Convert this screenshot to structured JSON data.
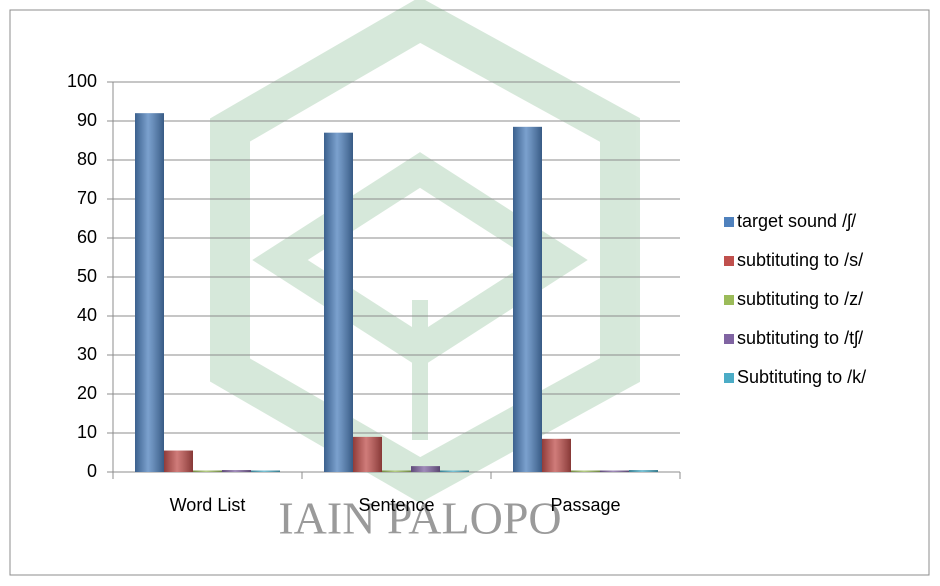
{
  "chart_data": {
    "type": "bar",
    "watermark": "IAIN PALOPO",
    "categories": [
      "Word List",
      "Sentence",
      "Passage"
    ],
    "series": [
      {
        "name": "target sound /ʃ/",
        "color": "#4f81bd",
        "values": [
          92,
          87,
          88.5
        ]
      },
      {
        "name": "subtituting to /s/",
        "color": "#c0504d",
        "values": [
          5.5,
          9,
          8.5
        ]
      },
      {
        "name": "subtituting to /z/",
        "color": "#9bbb59",
        "values": [
          0,
          0,
          0
        ]
      },
      {
        "name": "subtituting to /tʃ/",
        "color": "#8064a2",
        "values": [
          0.5,
          1.5,
          0
        ]
      },
      {
        "name": "Subtituting to /k/",
        "color": "#4bacc6",
        "values": [
          0,
          0,
          0.5
        ]
      }
    ],
    "ylim": [
      0,
      100
    ],
    "yticks": [
      0,
      10,
      20,
      30,
      40,
      50,
      60,
      70,
      80,
      90,
      100
    ],
    "grid": true,
    "legend": "right"
  }
}
